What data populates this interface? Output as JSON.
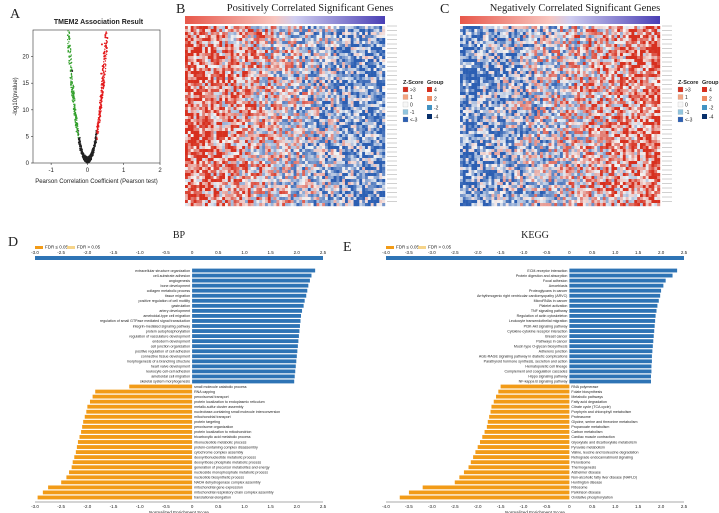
{
  "panels": {
    "A": {
      "letter": "A"
    },
    "B": {
      "letter": "B",
      "title": "Positively Correlated Significant Genes"
    },
    "C": {
      "letter": "C",
      "title": "Negatively Correlated Significant Genes"
    },
    "D": {
      "letter": "D"
    },
    "E": {
      "letter": "E"
    }
  },
  "colors": {
    "pos_bar": "#2e74b5",
    "neg_bar": "#f29b17",
    "heat_red": "#d7301f",
    "heat_blue": "#2c5fb3",
    "heat_white": "#f4f4f4",
    "volcano_red": "#e31a1c",
    "volcano_green": "#33a02c",
    "zscore_legend": [
      "#d7301f",
      "#f4a582",
      "#f7f7f7",
      "#92c5de",
      "#2c5fb3"
    ],
    "group_legend": [
      "#d7301f",
      "#ef8a62",
      "#4393c3",
      "#08306b"
    ]
  },
  "chart_data": [
    {
      "type": "scatter",
      "panel": "A",
      "title": "TMEM2 Association Result",
      "xlabel": "Pearson Correlation Coefficient (Pearson test)",
      "ylabel": "-log10(pvalue)",
      "xlim": [
        -1.5,
        2
      ],
      "ylim": [
        0,
        25
      ],
      "xticks": [
        "-1",
        "0",
        "1",
        "2"
      ],
      "yticks": [
        "0",
        "5",
        "10",
        "15",
        "20"
      ],
      "legend": "none"
    },
    {
      "type": "heatmap",
      "panel": "B",
      "title": "Positively Correlated Significant Genes",
      "legend_zscore": {
        "title": "Z-Score",
        "labels": [
          ">3",
          "1",
          "0",
          "-1",
          "<-3"
        ]
      },
      "legend_group": {
        "title": "Group",
        "labels": [
          "4",
          "2",
          "-2",
          "-4"
        ]
      }
    },
    {
      "type": "heatmap",
      "panel": "C",
      "title": "Negatively Correlated Significant Genes",
      "legend_zscore": {
        "title": "Z-Score",
        "labels": [
          ">3",
          "1",
          "0",
          "-1",
          "<-3"
        ]
      },
      "legend_group": {
        "title": "Group",
        "labels": [
          "4",
          "2",
          "-2",
          "-4"
        ]
      }
    },
    {
      "type": "bar",
      "panel": "D",
      "title": "BP",
      "xlabel": "Normalized Enrichment Score",
      "legend": [
        "FDR ≤ 0.05",
        "FDR > 0.05"
      ],
      "xlim": [
        -3.0,
        2.5
      ],
      "xticks": [
        "-3.0",
        "-2.5",
        "-2.0",
        "-1.5",
        "-1.0",
        "-0.5",
        "0",
        "0.5",
        "1.0",
        "1.5",
        "2.0",
        "2.5"
      ],
      "categories": [
        "extracellular structure organization",
        "cell-substrate adhesion",
        "angiogenesis",
        "bone development",
        "collagen metabolic process",
        "tissue migration",
        "positive regulation of cell motility",
        "gastrulation",
        "artery development",
        "ameboidal-type cell migration",
        "regulation of small GTPase mediated signal transduction",
        "integrin-mediated signaling pathway",
        "protein autophosphorylation",
        "regulation of vasculature development",
        "endoderm development",
        "cell junction organization",
        "positive regulation of cell adhesion",
        "connective tissue development",
        "morphogenesis of a branching structure",
        "heart valve development",
        "leukocyte cell-cell adhesion",
        "ameboidal cell migration",
        "skeletal system morphogenesis",
        "small molecule catabolic process",
        "RNA capping",
        "peroxisomal transport",
        "protein localization to endoplasmic reticulum",
        "metallo-sulfur cluster assembly",
        "nucleobase-containing small molecule interconversion",
        "mitochondrial transport",
        "protein targeting",
        "peroxisome organization",
        "protein localization to mitochondrion",
        "tricarboxylic acid metabolic process",
        "ribonucleotide metabolic process",
        "protein-containing complex disassembly",
        "cytochrome complex assembly",
        "deoxyribonucleotide metabolic process",
        "deoxyribose phosphate metabolic process",
        "generation of precursor metabolites and energy",
        "nucleoside monophosphate metabolic process",
        "nucleotide biosynthetic process",
        "NADH dehydrogenase complex assembly",
        "mitochondrial gene expression",
        "mitochondrial respiratory chain complex assembly",
        "translational elongation"
      ],
      "values": [
        2.35,
        2.28,
        2.25,
        2.22,
        2.2,
        2.18,
        2.15,
        2.13,
        2.1,
        2.08,
        2.07,
        2.06,
        2.05,
        2.04,
        2.03,
        2.02,
        2.01,
        2.0,
        1.99,
        1.98,
        1.97,
        1.96,
        1.95,
        -1.2,
        -1.85,
        -1.9,
        -1.95,
        -2.0,
        -2.02,
        -2.05,
        -2.08,
        -2.1,
        -2.12,
        -2.15,
        -2.18,
        -2.2,
        -2.22,
        -2.25,
        -2.28,
        -2.3,
        -2.35,
        -2.4,
        -2.5,
        -2.75,
        -2.85,
        -2.95
      ]
    },
    {
      "type": "bar",
      "panel": "E",
      "title": "KEGG",
      "xlabel": "Normalized Enrichment Score",
      "legend": [
        "FDR ≤ 0.05",
        "FDR > 0.05"
      ],
      "xlim": [
        -4.0,
        2.5
      ],
      "xticks": [
        "-4.0",
        "-3.5",
        "-3.0",
        "-2.5",
        "-2.0",
        "-1.5",
        "-1.0",
        "-0.5",
        "0",
        "0.5",
        "1.0",
        "1.5",
        "2.0",
        "2.5"
      ],
      "categories": [
        "ECM-receptor interaction",
        "Protein digestion and absorption",
        "Focal adhesion",
        "Amoebiasis",
        "Proteoglycans in cancer",
        "Arrhythmogenic right ventricular cardiomyopathy (ARVC)",
        "MicroRNAs in cancer",
        "Platelet activation",
        "TNF signaling pathway",
        "Regulation of actin cytoskeleton",
        "Leukocyte transendothelial migration",
        "PI3K-Akt signaling pathway",
        "Cytokine-cytokine receptor interaction",
        "Breast cancer",
        "Pathways in cancer",
        "Mucin type O-glycan biosynthesis",
        "Adherens junction",
        "AGE-RAGE signaling pathway in diabetic complications",
        "Parathyroid hormone synthesis, secretion and action",
        "Hematopoietic cell lineage",
        "Complement and coagulation cascades",
        "Hippo signaling pathway",
        "NF-kappa B signaling pathway",
        "RNA polymerase",
        "Folate biosynthesis",
        "Metabolic pathways",
        "Fatty acid degradation",
        "Citrate cycle (TCA cycle)",
        "Porphyrin and chlorophyll metabolism",
        "Proteasome",
        "Glycine, serine and threonine metabolism",
        "Propanoate metabolism",
        "Carbon metabolism",
        "Cardiac muscle contraction",
        "Glyoxylate and dicarboxylate metabolism",
        "Pyruvate metabolism",
        "Valine, leucine and isoleucine degradation",
        "Retrograde endocannabinoid signaling",
        "Peroxisome",
        "Thermogenesis",
        "Alzheimer disease",
        "Non-alcoholic fatty liver disease (NAFLD)",
        "Huntington disease",
        "Ribosome",
        "Parkinson disease",
        "Oxidative phosphorylation"
      ],
      "values": [
        2.35,
        2.25,
        2.1,
        2.05,
        2.0,
        1.98,
        1.95,
        1.92,
        1.9,
        1.88,
        1.87,
        1.86,
        1.85,
        1.84,
        1.83,
        1.82,
        1.81,
        1.8,
        1.8,
        1.79,
        1.79,
        1.78,
        1.78,
        -1.5,
        -1.55,
        -1.6,
        -1.65,
        -1.7,
        -1.72,
        -1.75,
        -1.78,
        -1.8,
        -1.85,
        -1.9,
        -1.95,
        -2.0,
        -2.05,
        -2.1,
        -2.15,
        -2.2,
        -2.3,
        -2.4,
        -2.5,
        -3.2,
        -3.5,
        -3.7
      ]
    }
  ]
}
